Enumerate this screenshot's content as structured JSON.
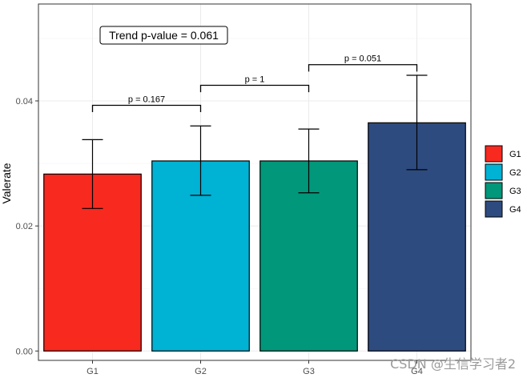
{
  "chart_data": {
    "type": "bar",
    "ylabel": "Valerate",
    "xlabel": "",
    "ylim": [
      -0.0015,
      0.0555
    ],
    "yticks": [
      0.0,
      0.02,
      0.04
    ],
    "ytick_labels": [
      "0.00",
      "0.02",
      "0.04"
    ],
    "categories": [
      "G1",
      "G2",
      "G3",
      "G4"
    ],
    "values": [
      0.0283,
      0.0304,
      0.0304,
      0.0365
    ],
    "error_low": [
      0.0228,
      0.0249,
      0.0253,
      0.029
    ],
    "error_high": [
      0.0338,
      0.036,
      0.0355,
      0.0441
    ],
    "colors": [
      "#F8291F",
      "#00B2D4",
      "#00977A",
      "#2E4B7F"
    ],
    "grid": true,
    "legend": {
      "position": "right",
      "entries": [
        "G1",
        "G2",
        "G3",
        "G4"
      ]
    },
    "annotation": {
      "text": "Trend p-value = 0.061"
    },
    "comparisons": [
      {
        "from": 0,
        "to": 1,
        "label": "p = 0.167",
        "y": 0.0393,
        "tip": 0.0382
      },
      {
        "from": 1,
        "to": 2,
        "label": "p = 1",
        "y": 0.0425,
        "tip": 0.0414
      },
      {
        "from": 2,
        "to": 3,
        "label": "p = 0.051",
        "y": 0.0458,
        "tip": 0.0447
      }
    ]
  },
  "watermark": "CSDN @生信学习者2"
}
